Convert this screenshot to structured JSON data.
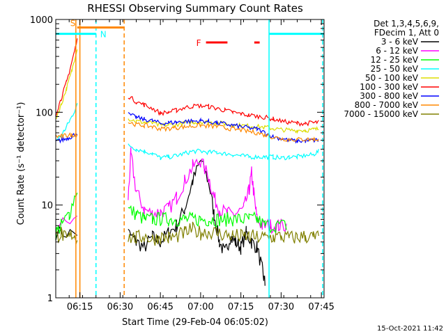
{
  "chart_data": {
    "type": "line",
    "title": "RHESSI Observing Summary Count Rates",
    "xlabel": "Start Time (29-Feb-04 06:05:02)",
    "ylabel": "Count Rate (s⁻¹ detector⁻¹)",
    "y_scale": "log",
    "ylim": [
      1,
      1000
    ],
    "xlim": [
      366,
      466
    ],
    "x_unit": "minutes after 00:00 UT",
    "x_ticks": [
      {
        "x": 375,
        "label": "06:15"
      },
      {
        "x": 390,
        "label": "06:30"
      },
      {
        "x": 405,
        "label": "06:45"
      },
      {
        "x": 420,
        "label": "07:00"
      },
      {
        "x": 435,
        "label": "07:15"
      },
      {
        "x": 450,
        "label": "07:30"
      },
      {
        "x": 465,
        "label": "07:45"
      }
    ],
    "y_ticks": [
      {
        "y": 1,
        "label": "1"
      },
      {
        "y": 10,
        "label": "10"
      },
      {
        "y": 100,
        "label": "100"
      },
      {
        "y": 1000,
        "label": "1000"
      }
    ],
    "legend": {
      "header": [
        "Det 1,3,4,5,6,9,",
        "FDecim 1, Att 0"
      ],
      "position": "right"
    },
    "series": [
      {
        "name": "3 - 6 keV",
        "color": "#000000",
        "points": [
          [
            366,
            5
          ],
          [
            374,
            5
          ],
          [
            375,
            null
          ],
          [
            393,
            null
          ],
          [
            393,
            5
          ],
          [
            396,
            4
          ],
          [
            399,
            3.5
          ],
          [
            402,
            4.5
          ],
          [
            405,
            4
          ],
          [
            408,
            5
          ],
          [
            411,
            6
          ],
          [
            414,
            9
          ],
          [
            417,
            18
          ],
          [
            420,
            30
          ],
          [
            423,
            18
          ],
          [
            425,
            8
          ],
          [
            427,
            4
          ],
          [
            429,
            3
          ],
          [
            431,
            4.5
          ],
          [
            433,
            4
          ],
          [
            435,
            3.5
          ],
          [
            437,
            5
          ],
          [
            439,
            4
          ],
          [
            441,
            3.5
          ],
          [
            443,
            2
          ],
          [
            444,
            1.4
          ],
          [
            445,
            null
          ]
        ]
      },
      {
        "name": "6 - 12 keV",
        "color": "#ff00ff",
        "points": [
          [
            366,
            6
          ],
          [
            374,
            7
          ],
          [
            375,
            null
          ],
          [
            393,
            null
          ],
          [
            393,
            12
          ],
          [
            394,
            35
          ],
          [
            396,
            14
          ],
          [
            399,
            9
          ],
          [
            402,
            8
          ],
          [
            405,
            8.5
          ],
          [
            408,
            9
          ],
          [
            411,
            12
          ],
          [
            414,
            18
          ],
          [
            417,
            26
          ],
          [
            420,
            30
          ],
          [
            423,
            20
          ],
          [
            425,
            12
          ],
          [
            427,
            9
          ],
          [
            430,
            8
          ],
          [
            433,
            8
          ],
          [
            436,
            9
          ],
          [
            438,
            14
          ],
          [
            439,
            22
          ],
          [
            440,
            12
          ],
          [
            441,
            7
          ],
          [
            443,
            6
          ],
          [
            446,
            6
          ],
          [
            449,
            6
          ],
          [
            452,
            6
          ]
        ]
      },
      {
        "name": "12 - 25 keV",
        "color": "#00ff00",
        "points": [
          [
            366,
            5
          ],
          [
            368,
            6
          ],
          [
            371,
            8
          ],
          [
            374,
            15
          ],
          [
            375,
            null
          ],
          [
            393,
            null
          ],
          [
            393,
            9
          ],
          [
            396,
            8
          ],
          [
            399,
            7
          ],
          [
            402,
            7
          ],
          [
            405,
            7
          ],
          [
            408,
            7
          ],
          [
            411,
            7
          ],
          [
            414,
            7
          ],
          [
            417,
            7
          ],
          [
            420,
            7
          ],
          [
            423,
            7
          ],
          [
            426,
            7
          ],
          [
            429,
            7
          ],
          [
            432,
            7
          ],
          [
            435,
            7
          ],
          [
            438,
            7
          ],
          [
            441,
            7
          ],
          [
            444,
            6
          ],
          [
            448,
            6
          ],
          [
            452,
            6
          ]
        ]
      },
      {
        "name": "25 - 50 keV",
        "color": "#00ffff",
        "points": [
          [
            366,
            50
          ],
          [
            368,
            55
          ],
          [
            370,
            70
          ],
          [
            372,
            90
          ],
          [
            374,
            120
          ],
          [
            375,
            null
          ],
          [
            393,
            null
          ],
          [
            393,
            45
          ],
          [
            396,
            40
          ],
          [
            399,
            38
          ],
          [
            402,
            36
          ],
          [
            405,
            32
          ],
          [
            408,
            33
          ],
          [
            411,
            34
          ],
          [
            414,
            36
          ],
          [
            417,
            38
          ],
          [
            420,
            38
          ],
          [
            423,
            37
          ],
          [
            426,
            37
          ],
          [
            429,
            36
          ],
          [
            432,
            35
          ],
          [
            435,
            34
          ],
          [
            438,
            33
          ],
          [
            441,
            33
          ],
          [
            444,
            33
          ],
          [
            447,
            33
          ],
          [
            450,
            32
          ],
          [
            453,
            33
          ],
          [
            456,
            33
          ],
          [
            459,
            34
          ],
          [
            462,
            35
          ],
          [
            464,
            38
          ]
        ]
      },
      {
        "name": "50 - 100 keV",
        "color": "#dddd00",
        "points": [
          [
            366,
            85
          ],
          [
            368,
            120
          ],
          [
            370,
            180
          ],
          [
            372,
            280
          ],
          [
            374,
            500
          ],
          [
            375,
            null
          ],
          [
            393,
            null
          ],
          [
            393,
            85
          ],
          [
            396,
            80
          ],
          [
            399,
            78
          ],
          [
            402,
            76
          ],
          [
            405,
            72
          ],
          [
            408,
            73
          ],
          [
            411,
            74
          ],
          [
            414,
            76
          ],
          [
            417,
            78
          ],
          [
            420,
            79
          ],
          [
            423,
            78
          ],
          [
            426,
            77
          ],
          [
            429,
            75
          ],
          [
            432,
            73
          ],
          [
            435,
            72
          ],
          [
            438,
            71
          ],
          [
            441,
            70
          ],
          [
            444,
            69
          ],
          [
            447,
            67
          ],
          [
            450,
            65
          ],
          [
            453,
            64
          ],
          [
            456,
            64
          ],
          [
            459,
            64
          ],
          [
            462,
            65
          ],
          [
            464,
            66
          ]
        ]
      },
      {
        "name": "100 - 300 keV",
        "color": "#ff0000",
        "points": [
          [
            366,
            95
          ],
          [
            368,
            140
          ],
          [
            370,
            210
          ],
          [
            372,
            350
          ],
          [
            374,
            600
          ],
          [
            375,
            null
          ],
          [
            393,
            null
          ],
          [
            393,
            150
          ],
          [
            396,
            130
          ],
          [
            399,
            120
          ],
          [
            402,
            110
          ],
          [
            405,
            98
          ],
          [
            408,
            100
          ],
          [
            411,
            105
          ],
          [
            414,
            112
          ],
          [
            417,
            116
          ],
          [
            420,
            118
          ],
          [
            423,
            115
          ],
          [
            426,
            110
          ],
          [
            429,
            105
          ],
          [
            432,
            100
          ],
          [
            435,
            96
          ],
          [
            438,
            93
          ],
          [
            441,
            91
          ],
          [
            444,
            88
          ],
          [
            447,
            85
          ],
          [
            450,
            80
          ],
          [
            453,
            78
          ],
          [
            456,
            76
          ],
          [
            459,
            76
          ],
          [
            462,
            77
          ],
          [
            464,
            78
          ]
        ]
      },
      {
        "name": "300 - 800 keV",
        "color": "#0000ff",
        "points": [
          [
            366,
            48
          ],
          [
            368,
            50
          ],
          [
            370,
            52
          ],
          [
            372,
            55
          ],
          [
            374,
            60
          ],
          [
            375,
            null
          ],
          [
            393,
            null
          ],
          [
            393,
            95
          ],
          [
            396,
            88
          ],
          [
            399,
            84
          ],
          [
            402,
            81
          ],
          [
            405,
            76
          ],
          [
            408,
            77
          ],
          [
            411,
            78
          ],
          [
            414,
            80
          ],
          [
            417,
            80
          ],
          [
            420,
            81
          ],
          [
            423,
            79
          ],
          [
            426,
            77
          ],
          [
            429,
            75
          ],
          [
            432,
            72
          ],
          [
            435,
            70
          ],
          [
            438,
            68
          ],
          [
            441,
            66
          ],
          [
            444,
            60
          ],
          [
            447,
            55
          ],
          [
            450,
            52
          ],
          [
            453,
            50
          ],
          [
            456,
            49
          ],
          [
            459,
            49
          ],
          [
            462,
            50
          ],
          [
            464,
            50
          ]
        ]
      },
      {
        "name": "800 - 7000 keV",
        "color": "#ff8800",
        "points": [
          [
            366,
            55
          ],
          [
            368,
            55
          ],
          [
            370,
            56
          ],
          [
            372,
            57
          ],
          [
            374,
            58
          ],
          [
            375,
            null
          ],
          [
            393,
            null
          ],
          [
            393,
            78
          ],
          [
            396,
            74
          ],
          [
            399,
            72
          ],
          [
            402,
            70
          ],
          [
            405,
            66
          ],
          [
            408,
            67
          ],
          [
            411,
            68
          ],
          [
            414,
            70
          ],
          [
            417,
            71
          ],
          [
            420,
            72
          ],
          [
            423,
            71
          ],
          [
            426,
            70
          ],
          [
            429,
            68
          ],
          [
            432,
            66
          ],
          [
            435,
            64
          ],
          [
            438,
            62
          ],
          [
            441,
            60
          ],
          [
            444,
            57
          ],
          [
            447,
            54
          ],
          [
            450,
            52
          ],
          [
            453,
            51
          ],
          [
            456,
            51
          ],
          [
            459,
            51
          ],
          [
            462,
            51
          ],
          [
            464,
            51
          ]
        ]
      },
      {
        "name": "7000 - 15000 keV",
        "color": "#808000",
        "points": [
          [
            366,
            4.5
          ],
          [
            368,
            5
          ],
          [
            370,
            4.2
          ],
          [
            372,
            4.8
          ],
          [
            374,
            4.5
          ],
          [
            375,
            null
          ],
          [
            393,
            null
          ],
          [
            393,
            4.5
          ],
          [
            396,
            4.4
          ],
          [
            399,
            4.6
          ],
          [
            402,
            4.3
          ],
          [
            405,
            4.5
          ],
          [
            408,
            4.4
          ],
          [
            411,
            4.6
          ],
          [
            414,
            5
          ],
          [
            417,
            5.5
          ],
          [
            420,
            5
          ],
          [
            423,
            5.2
          ],
          [
            426,
            5
          ],
          [
            429,
            4.8
          ],
          [
            432,
            4.7
          ],
          [
            435,
            4.6
          ],
          [
            438,
            4.6
          ],
          [
            441,
            4.5
          ],
          [
            444,
            4.5
          ],
          [
            447,
            4.5
          ],
          [
            450,
            4.6
          ],
          [
            453,
            4.4
          ],
          [
            456,
            4.5
          ],
          [
            459,
            4.6
          ],
          [
            462,
            4.5
          ],
          [
            464,
            4.5
          ]
        ]
      }
    ],
    "annotations": [
      {
        "type": "vline",
        "x": 373.5,
        "color": "#ff8800",
        "style": "solid"
      },
      {
        "type": "vline",
        "x": 375.0,
        "color": "#ff8800",
        "style": "solid"
      },
      {
        "type": "vline",
        "x": 391.5,
        "color": "#ff8800",
        "style": "dashed"
      },
      {
        "type": "vline",
        "x": 381.0,
        "color": "#00ffff",
        "style": "dashed"
      },
      {
        "type": "vline",
        "x": 445.5,
        "color": "#00ffff",
        "style": "solid"
      },
      {
        "type": "vline",
        "x": 465.5,
        "color": "#00ffff",
        "style": "dashed"
      },
      {
        "type": "hbar",
        "x0": 366,
        "x1": 381,
        "y": 700,
        "color": "#00ffff",
        "label": "N"
      },
      {
        "type": "hbar",
        "x0": 445.5,
        "x1": 466,
        "y": 700,
        "color": "#00ffff"
      },
      {
        "type": "hbar",
        "x0": 374,
        "x1": 391.5,
        "y": 820,
        "color": "#ff8800",
        "label": "S"
      },
      {
        "type": "hbar",
        "x0": 422,
        "x1": 430,
        "y": 565,
        "color": "#ff0000",
        "label": "F"
      },
      {
        "type": "hbar",
        "x0": 440,
        "x1": 442,
        "y": 565,
        "color": "#ff0000"
      }
    ]
  },
  "footer": {
    "timestamp": "15-Oct-2021 11:42"
  }
}
